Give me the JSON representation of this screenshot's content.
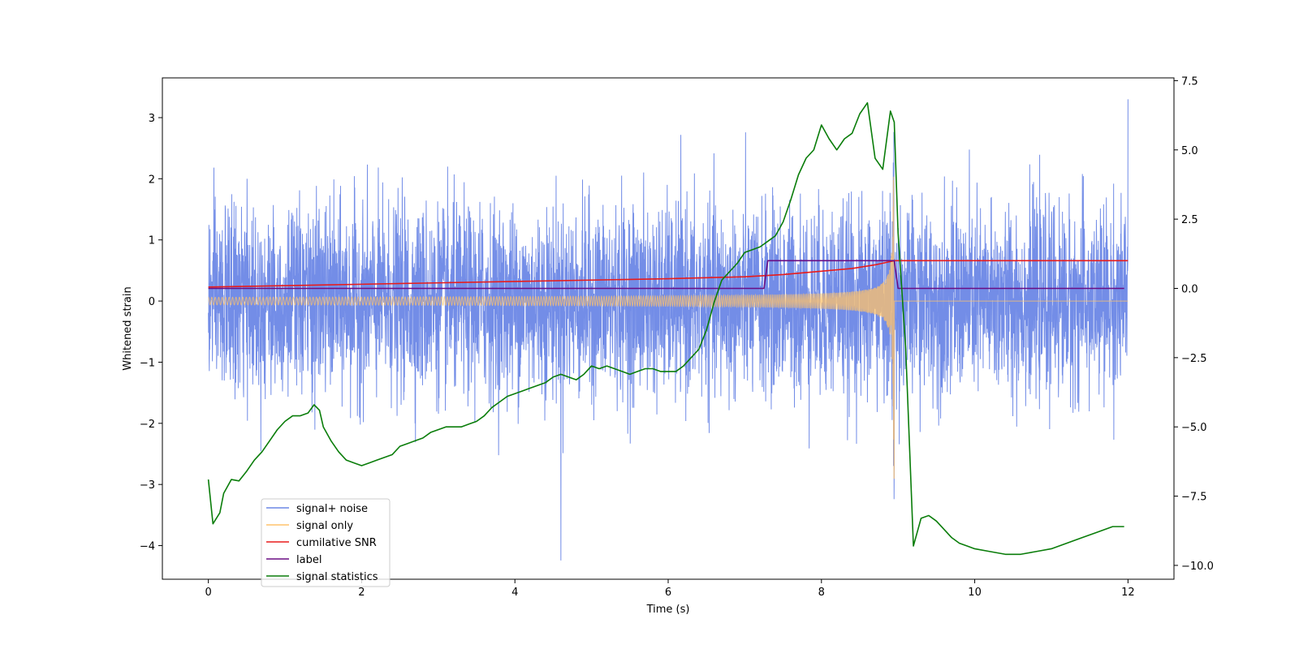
{
  "chart_data": {
    "type": "line",
    "xlabel": "Time (s)",
    "ylabel_left": "Whitened strain",
    "ylabel_right": "",
    "xlim": [
      -0.6,
      12.6
    ],
    "ylim_left": [
      -4.55,
      3.65
    ],
    "ylim_right": [
      -10.5,
      7.6
    ],
    "x_ticks": [
      0,
      2,
      4,
      6,
      8,
      10,
      12
    ],
    "x_tick_labels": [
      "0",
      "2",
      "4",
      "6",
      "8",
      "10",
      "12"
    ],
    "y_ticks_left": [
      -4,
      -3,
      -2,
      -1,
      0,
      1,
      2,
      3
    ],
    "y_tick_labels_left": [
      "−4",
      "−3",
      "−2",
      "−1",
      "0",
      "1",
      "2",
      "3"
    ],
    "y_ticks_right": [
      -10,
      -7.5,
      -5,
      -2.5,
      0,
      2.5,
      5,
      7.5
    ],
    "y_tick_labels_right": [
      "−10.0",
      "−7.5",
      "−5.0",
      "−2.5",
      "0.0",
      "2.5",
      "5.0",
      "7.5"
    ],
    "grid": false,
    "legend_position": "lower-left",
    "series": [
      {
        "name": "signal+ noise",
        "axis": "left",
        "color": "#6b87e6",
        "description": "white noise, std ~0.75, spikes up to ~3.3 at t=12 and ~-4.2 at t=4.6",
        "x_range": [
          0,
          12
        ],
        "noise_std": 0.75
      },
      {
        "name": "signal only",
        "axis": "left",
        "color": "#ffc36b",
        "description": "chirp growing in amplitude until merger near t=8.95 (peak ~2.9), zero afterwards",
        "x_range": [
          0,
          12
        ],
        "merger_time": 8.95,
        "peak_amplitude": 2.9
      },
      {
        "name": "cumilative SNR",
        "axis": "right",
        "color": "#e81b1b",
        "x": [
          0,
          2,
          4,
          6,
          7,
          7.5,
          8,
          8.4,
          8.7,
          8.95,
          9.0,
          12
        ],
        "y": [
          0.05,
          0.15,
          0.25,
          0.35,
          0.42,
          0.5,
          0.62,
          0.72,
          0.85,
          1.0,
          1.0,
          1.0
        ]
      },
      {
        "name": "label",
        "axis": "right",
        "color": "#6a0d83",
        "x": [
          0,
          7.25,
          7.3,
          8.95,
          9.0,
          11.95
        ],
        "y": [
          0,
          0,
          1,
          1,
          0,
          0
        ]
      },
      {
        "name": "signal statistics",
        "axis": "right",
        "color": "#0a7d0a",
        "x": [
          0,
          0.06,
          0.15,
          0.2,
          0.3,
          0.4,
          0.5,
          0.6,
          0.7,
          0.8,
          0.9,
          1.0,
          1.1,
          1.2,
          1.3,
          1.38,
          1.45,
          1.5,
          1.6,
          1.7,
          1.8,
          1.9,
          2.0,
          2.1,
          2.2,
          2.3,
          2.4,
          2.5,
          2.6,
          2.7,
          2.8,
          2.9,
          3.0,
          3.1,
          3.2,
          3.3,
          3.4,
          3.5,
          3.6,
          3.7,
          3.8,
          3.9,
          4.0,
          4.1,
          4.2,
          4.3,
          4.4,
          4.5,
          4.6,
          4.7,
          4.8,
          4.9,
          5.0,
          5.1,
          5.2,
          5.3,
          5.4,
          5.5,
          5.6,
          5.7,
          5.8,
          5.9,
          6.0,
          6.1,
          6.2,
          6.3,
          6.4,
          6.5,
          6.6,
          6.7,
          6.8,
          6.9,
          7.0,
          7.1,
          7.2,
          7.3,
          7.4,
          7.5,
          7.6,
          7.7,
          7.8,
          7.9,
          8.0,
          8.1,
          8.2,
          8.3,
          8.4,
          8.5,
          8.6,
          8.7,
          8.8,
          8.9,
          8.95,
          9.0,
          9.1,
          9.2,
          9.3,
          9.4,
          9.5,
          9.6,
          9.7,
          9.8,
          9.9,
          10.0,
          10.2,
          10.4,
          10.6,
          10.8,
          11.0,
          11.2,
          11.4,
          11.6,
          11.8,
          11.95
        ],
        "y": [
          -6.9,
          -8.5,
          -8.1,
          -7.4,
          -6.9,
          -6.95,
          -6.6,
          -6.2,
          -5.9,
          -5.5,
          -5.1,
          -4.8,
          -4.6,
          -4.6,
          -4.5,
          -4.2,
          -4.4,
          -5.0,
          -5.5,
          -5.9,
          -6.2,
          -6.3,
          -6.4,
          -6.3,
          -6.2,
          -6.1,
          -6.0,
          -5.7,
          -5.6,
          -5.5,
          -5.4,
          -5.2,
          -5.1,
          -5.0,
          -5.0,
          -5.0,
          -4.9,
          -4.8,
          -4.6,
          -4.3,
          -4.1,
          -3.9,
          -3.8,
          -3.7,
          -3.6,
          -3.5,
          -3.4,
          -3.2,
          -3.1,
          -3.2,
          -3.3,
          -3.1,
          -2.8,
          -2.9,
          -2.8,
          -2.9,
          -3.0,
          -3.1,
          -3.0,
          -2.9,
          -2.9,
          -3.0,
          -3.0,
          -3.0,
          -2.8,
          -2.5,
          -2.2,
          -1.5,
          -0.5,
          0.3,
          0.6,
          0.9,
          1.3,
          1.4,
          1.5,
          1.7,
          1.9,
          2.4,
          3.2,
          4.1,
          4.7,
          5.0,
          5.9,
          5.4,
          5.0,
          5.4,
          5.6,
          6.3,
          6.7,
          4.7,
          4.3,
          6.4,
          6.0,
          2.0,
          -2.2,
          -9.3,
          -8.3,
          -8.2,
          -8.4,
          -8.7,
          -9.0,
          -9.2,
          -9.3,
          -9.4,
          -9.5,
          -9.6,
          -9.6,
          -9.5,
          -9.4,
          -9.2,
          -9.0,
          -8.8,
          -8.6,
          -8.6
        ]
      }
    ]
  }
}
